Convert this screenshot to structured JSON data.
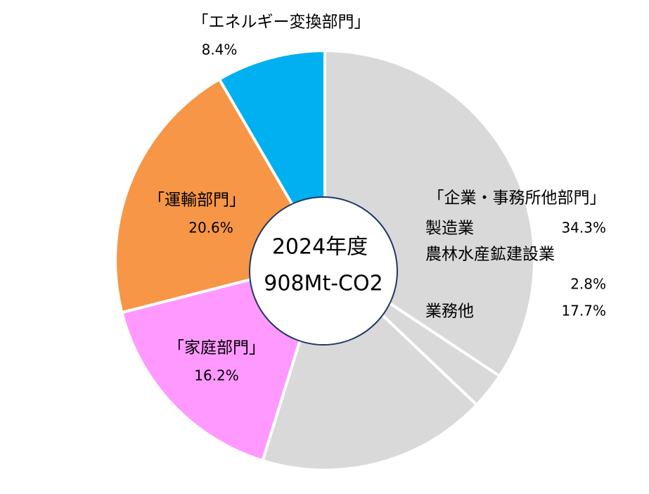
{
  "chart_data": {
    "type": "pie",
    "center_label": [
      "2024年度",
      "908Mt-CO2"
    ],
    "group_label": "「企業・事務所他部門」",
    "categories": [
      "製造業",
      "農林水産鉱建設業",
      "業務他",
      "「家庭部門」",
      "「運輸部門」",
      "「エネルギー変換部門」"
    ],
    "values": [
      34.3,
      2.8,
      17.7,
      16.2,
      20.6,
      8.4
    ],
    "value_labels": [
      "34.3%",
      "2.8%",
      "17.7%",
      "16.2%",
      "20.6%",
      "8.4%"
    ],
    "colors": [
      "#d9d9d9",
      "#d9d9d9",
      "#d9d9d9",
      "#ff99ff",
      "#f79646",
      "#00b0f0"
    ]
  }
}
